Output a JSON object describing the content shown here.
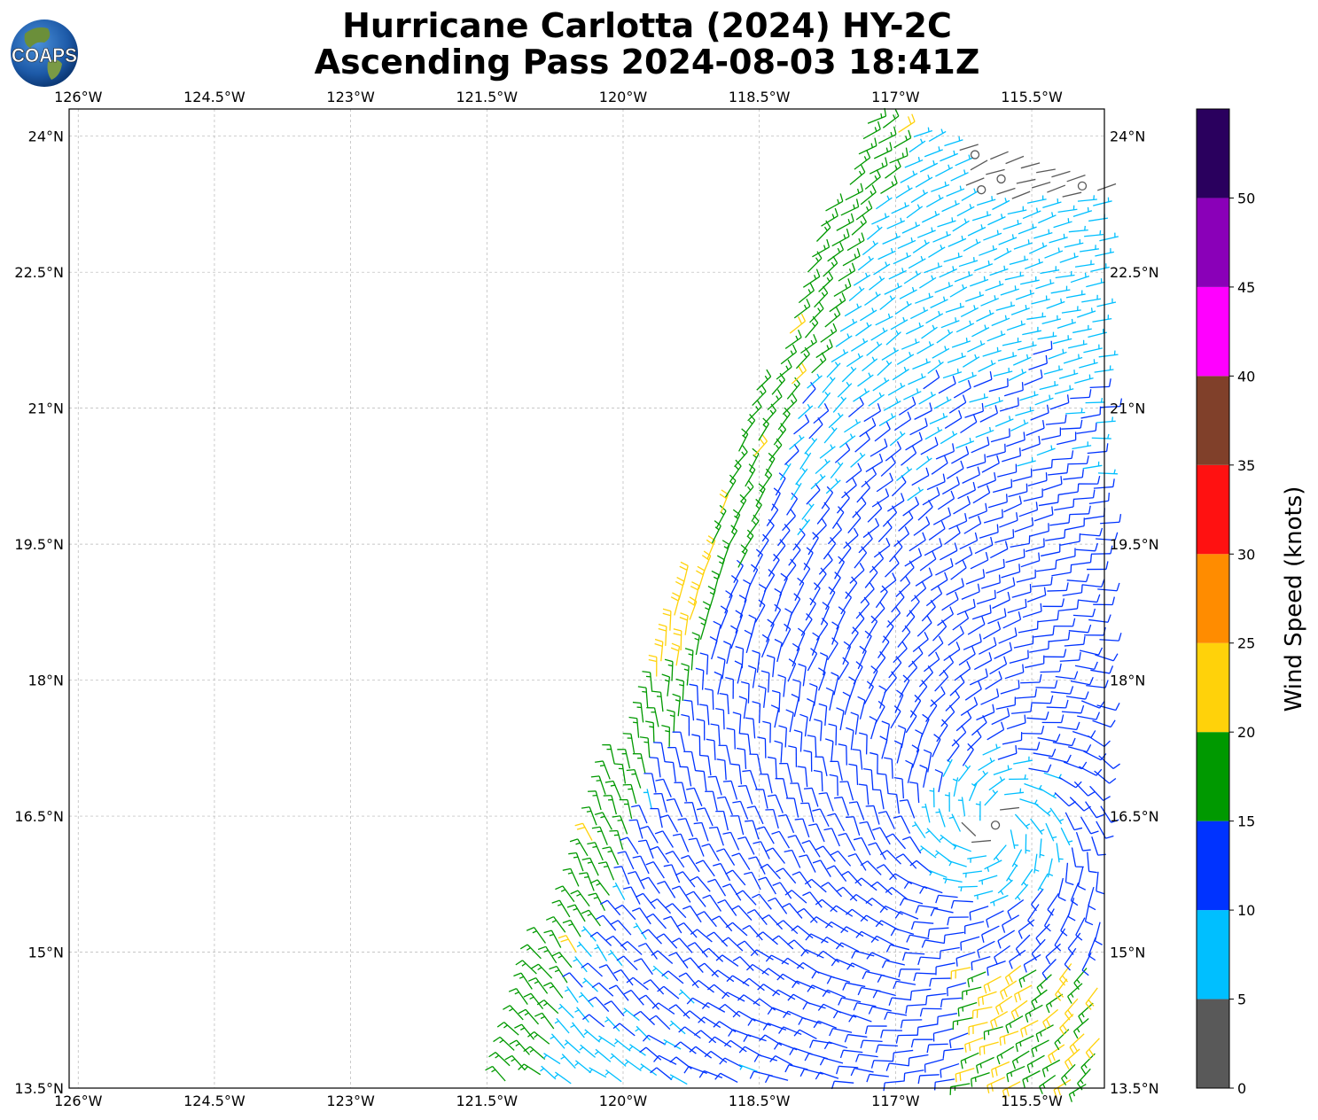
{
  "title": {
    "line1": "Hurricane Carlotta (2024) HY-2C",
    "line2": "Ascending Pass 2024-08-03 18:41Z"
  },
  "logo": {
    "text": "COAPS",
    "icon": "globe-logo"
  },
  "map": {
    "lon_range": [
      -126.1,
      -114.7
    ],
    "lat_range": [
      13.5,
      24.3
    ],
    "lon_ticks": [
      {
        "value": -126,
        "label": "126°W"
      },
      {
        "value": -124.5,
        "label": "124.5°W"
      },
      {
        "value": -123,
        "label": "123°W"
      },
      {
        "value": -121.5,
        "label": "121.5°W"
      },
      {
        "value": -120,
        "label": "120°W"
      },
      {
        "value": -118.5,
        "label": "118.5°W"
      },
      {
        "value": -117,
        "label": "117°W"
      },
      {
        "value": -115.5,
        "label": "115.5°W"
      }
    ],
    "lat_ticks": [
      {
        "value": 24,
        "label": "24°N"
      },
      {
        "value": 22.5,
        "label": "22.5°N"
      },
      {
        "value": 21,
        "label": "21°N"
      },
      {
        "value": 19.5,
        "label": "19.5°N"
      },
      {
        "value": 18,
        "label": "18°N"
      },
      {
        "value": 16.5,
        "label": "16.5°N"
      },
      {
        "value": 15,
        "label": "15°N"
      },
      {
        "value": 13.5,
        "label": "13.5°N"
      }
    ],
    "gridlines": true,
    "storm_center": {
      "lon": -115.9,
      "lat": 16.4
    },
    "swath_edge": [
      [
        -121.45,
        13.55
      ],
      [
        -117.35,
        24.3
      ]
    ]
  },
  "colorbar": {
    "title": "Wind Speed (knots)",
    "bins": [
      {
        "min": 0,
        "max": 5,
        "color": "#595959"
      },
      {
        "min": 5,
        "max": 10,
        "color": "#00bfff"
      },
      {
        "min": 10,
        "max": 15,
        "color": "#0033ff"
      },
      {
        "min": 15,
        "max": 20,
        "color": "#009900"
      },
      {
        "min": 20,
        "max": 25,
        "color": "#ffd20a"
      },
      {
        "min": 25,
        "max": 30,
        "color": "#ff8c00"
      },
      {
        "min": 30,
        "max": 35,
        "color": "#ff1111"
      },
      {
        "min": 35,
        "max": 40,
        "color": "#80402a"
      },
      {
        "min": 40,
        "max": 45,
        "color": "#ff00ff"
      },
      {
        "min": 45,
        "max": 50,
        "color": "#8a00b8"
      },
      {
        "min": 50,
        "max": 55,
        "color": "#2a005e"
      }
    ],
    "tick_labels": [
      "0",
      "5",
      "10",
      "15",
      "20",
      "25",
      "30",
      "35",
      "40",
      "45",
      "50"
    ]
  }
}
